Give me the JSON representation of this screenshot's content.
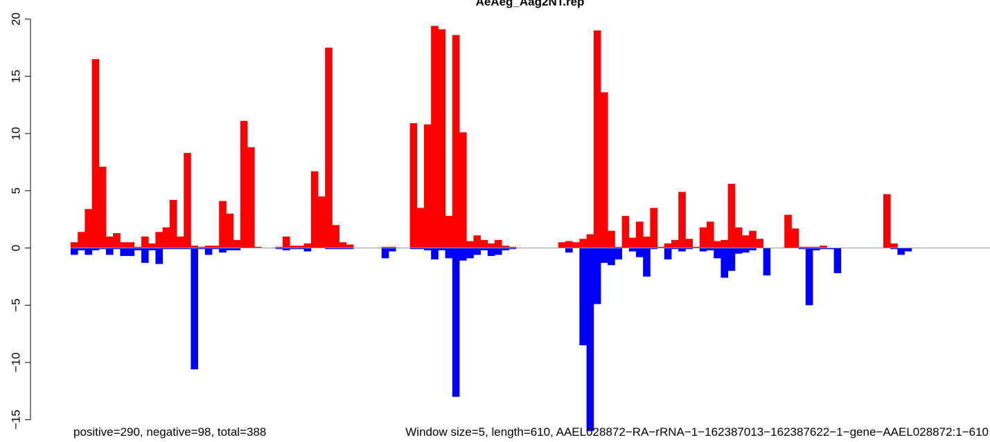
{
  "chart_data": {
    "type": "bar",
    "title": "AeAeg_Aag2NT.rep",
    "window_size": 5,
    "sequence_length": 610,
    "ylim": [
      -15.5,
      20
    ],
    "yticks": [
      -15,
      -10,
      -5,
      0,
      5,
      10,
      15,
      20
    ],
    "ytick_labels": [
      "−15",
      "−10",
      "−5",
      "0",
      "5",
      "10",
      "15",
      "20"
    ],
    "zero_line": true,
    "grid": false,
    "legend": "none",
    "colors": {
      "positive": "#ff0000",
      "negative": "#0000ff",
      "baseline": "#999999"
    },
    "footer_left": "positive=290, negative=98, total=388",
    "footer_right": "Window size=5, length=610, AAEL028872−RA−rRNA−1−162387013−162387622−1−gene−AAEL028872:1−610",
    "bins": [
      1,
      6,
      11,
      16,
      21,
      26,
      31,
      36,
      41,
      46,
      51,
      56,
      61,
      66,
      71,
      76,
      81,
      86,
      91,
      96,
      101,
      106,
      111,
      116,
      121,
      126,
      131,
      136,
      141,
      146,
      151,
      156,
      161,
      166,
      171,
      176,
      181,
      186,
      191,
      196,
      201,
      206,
      211,
      216,
      221,
      226,
      231,
      236,
      241,
      246,
      251,
      256,
      261,
      266,
      271,
      276,
      281,
      286,
      291,
      296,
      301,
      306,
      311,
      316,
      321,
      326,
      331,
      336,
      341,
      346,
      351,
      356,
      361,
      366,
      371,
      376,
      381,
      386,
      391,
      396,
      401,
      406,
      411,
      416,
      421,
      426,
      431,
      436,
      441,
      446,
      451,
      456,
      461,
      466,
      471,
      476,
      481,
      486,
      491,
      496,
      501,
      506,
      511,
      516,
      521,
      526,
      531,
      536,
      541,
      546,
      551,
      556,
      561,
      566,
      571,
      576,
      581,
      586,
      591,
      596,
      601,
      606
    ],
    "series": [
      {
        "name": "positive",
        "values": [
          0.5,
          1.4,
          3.4,
          16.5,
          7.1,
          1.0,
          1.3,
          0.5,
          0.5,
          0.1,
          1.0,
          0.4,
          1.4,
          1.8,
          4.2,
          1.0,
          8.3,
          0.2,
          0.1,
          0.2,
          0.2,
          4.1,
          3.0,
          0.7,
          11.1,
          8.8,
          0.1,
          0,
          0,
          0.1,
          1.0,
          0.2,
          0.2,
          0.4,
          6.7,
          4.5,
          17.5,
          2.0,
          0.5,
          0.3,
          0,
          0,
          0,
          0,
          0.1,
          0.1,
          0,
          0,
          10.9,
          3.5,
          10.8,
          19.4,
          19.1,
          2.8,
          18.6,
          10.1,
          0.6,
          1.1,
          0.7,
          0.4,
          0.7,
          0.2,
          0.1,
          0,
          0,
          0,
          0,
          0,
          0,
          0.5,
          0.6,
          0.5,
          0.8,
          1.2,
          19.0,
          13.6,
          1.5,
          0.1,
          2.8,
          0.9,
          2.3,
          1.0,
          3.5,
          0.1,
          0.4,
          0.7,
          4.9,
          0.8,
          0.1,
          1.8,
          2.3,
          0.6,
          0.7,
          5.6,
          1.8,
          1.1,
          1.5,
          0.8,
          0,
          0,
          0,
          2.9,
          1.7,
          0.1,
          0.1,
          0.1,
          0.2,
          0,
          0,
          0,
          0,
          0,
          0,
          0,
          0,
          4.7,
          0.4,
          0,
          0,
          0,
          0,
          0
        ],
        "color": "#ff0000"
      },
      {
        "name": "negative",
        "values": [
          -0.6,
          -0.2,
          -0.6,
          -0.2,
          -0.1,
          -0.6,
          -0.1,
          -0.7,
          -0.7,
          -0.2,
          -1.3,
          -0.2,
          -1.4,
          -0.1,
          -0.1,
          -0.1,
          -0.1,
          -10.6,
          -0.1,
          -0.6,
          -0.1,
          -0.4,
          -0.2,
          -0.2,
          0,
          0,
          0,
          0,
          0,
          -0.1,
          -0.2,
          -0.1,
          -0.1,
          -0.3,
          0,
          0,
          -0.1,
          -0.1,
          -0.1,
          -0.1,
          0,
          0,
          0,
          0,
          -0.9,
          -0.3,
          0,
          0,
          -0.1,
          -0.1,
          -0.2,
          -1.0,
          -0.2,
          -0.9,
          -13.0,
          -1.1,
          -0.9,
          -0.6,
          -0.2,
          -0.7,
          -0.6,
          -0.2,
          -0.1,
          0,
          0,
          0,
          0,
          0,
          0,
          0,
          -0.4,
          0,
          -8.5,
          -16.0,
          -4.9,
          -1.3,
          -1.5,
          -1.0,
          0,
          -0.3,
          -0.8,
          -2.5,
          -0.1,
          0,
          -1.0,
          -0.1,
          -0.3,
          -0.1,
          0,
          -0.3,
          -0.2,
          -0.9,
          -2.6,
          -2.0,
          -0.5,
          -0.4,
          -0.2,
          0,
          -2.4,
          0,
          0,
          0,
          0,
          -0.1,
          -5.0,
          -0.2,
          -0.1,
          -0.1,
          -2.2,
          0,
          0,
          0,
          0,
          0,
          0,
          0,
          -0.1,
          -0.6,
          -0.3,
          0,
          0,
          0
        ],
        "color": "#0000ff"
      }
    ]
  }
}
